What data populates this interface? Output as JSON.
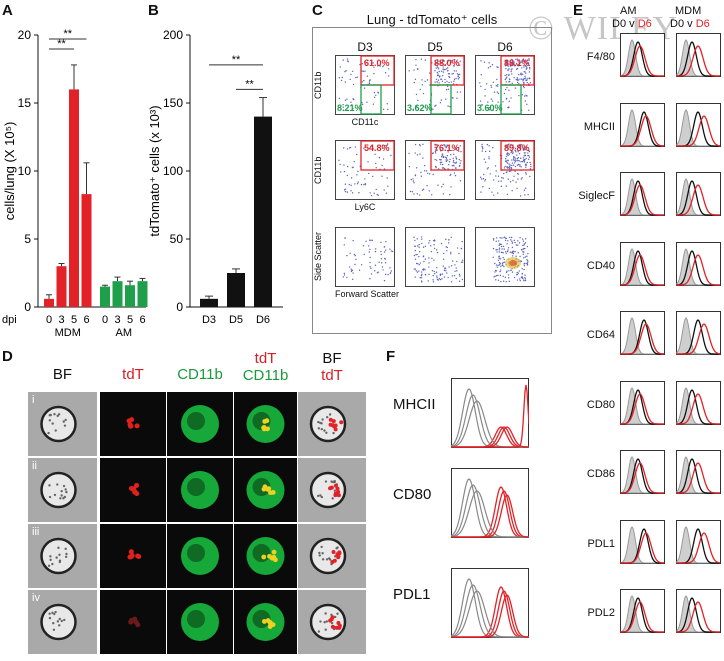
{
  "watermark": "© WILEY",
  "panels": {
    "A": "A",
    "B": "B",
    "C": "C",
    "D": "D",
    "E": "E",
    "F": "F"
  },
  "chart_data": [
    {
      "id": "A",
      "type": "bar",
      "ylabel": "cells/lung (X 10⁵)",
      "x_prefix": "dpi",
      "ylim": [
        0,
        20
      ],
      "yticks": [
        0,
        5,
        10,
        15,
        20
      ],
      "groups": [
        {
          "name": "MDM",
          "categories": [
            "0",
            "3",
            "5",
            "6"
          ],
          "values": [
            0.6,
            3.0,
            16.0,
            8.3
          ],
          "errors": [
            0.3,
            0.2,
            1.8,
            2.3
          ],
          "color": "#e32227"
        },
        {
          "name": "AM",
          "categories": [
            "0",
            "3",
            "5",
            "6"
          ],
          "values": [
            1.5,
            1.9,
            1.6,
            1.9
          ],
          "errors": [
            0.1,
            0.3,
            0.3,
            0.2
          ],
          "color": "#1ea04a"
        }
      ],
      "significance": [
        "**",
        "**"
      ]
    },
    {
      "id": "B",
      "type": "bar",
      "ylabel": "tdTomato⁺ cells (x 10³)",
      "ylim": [
        0,
        200
      ],
      "yticks": [
        0,
        50,
        100,
        150,
        200
      ],
      "categories": [
        "D3",
        "D5",
        "D6"
      ],
      "values": [
        6,
        25,
        140
      ],
      "errors": [
        2,
        3,
        14
      ],
      "color": "#111111",
      "significance": [
        "**",
        "**"
      ]
    }
  ],
  "panelC": {
    "title": "Lung - tdTomato⁺ cells",
    "columns": [
      "D3",
      "D5",
      "D6"
    ],
    "rows": [
      {
        "ylabel": "CD11b",
        "xlabel": "CD11c",
        "red": [
          "61.0%",
          "88.0%",
          "88.1%"
        ],
        "green": [
          "8.21%",
          "3.62%",
          "3.60%"
        ]
      },
      {
        "ylabel": "CD11b",
        "xlabel": "Ly6C",
        "red": [
          "54.8%",
          "76.1%",
          "89.8%"
        ]
      },
      {
        "ylabel": "Side Scatter",
        "xlabel": "Forward Scatter"
      }
    ]
  },
  "panelD": {
    "headers": [
      {
        "text": "BF",
        "color": "#111111"
      },
      {
        "text": "tdT",
        "color": "#d91e24"
      },
      {
        "text": "CD11b",
        "color": "#1a9a3c"
      },
      {
        "text": "tdT",
        "color": "#d91e24",
        "text2": "CD11b",
        "color2": "#1a9a3c"
      },
      {
        "text": "BF",
        "color": "#111111",
        "text2": "tdT",
        "color2": "#d91e24"
      }
    ],
    "rows": [
      "i",
      "ii",
      "iii",
      "iv"
    ]
  },
  "panelE": {
    "col_titles": [
      "AM",
      "MDM"
    ],
    "subtitle_a": "D0 v ",
    "subtitle_b": "D6",
    "markers": [
      "F4/80",
      "MHCII",
      "SiglecF",
      "CD40",
      "CD64",
      "CD80",
      "CD86",
      "PDL1",
      "PDL2"
    ]
  },
  "panelF": {
    "markers": [
      "MHCII",
      "CD80",
      "PDL1"
    ]
  },
  "colors": {
    "red": "#e32227",
    "green": "#1ea04a",
    "black": "#111111",
    "gray": "#888888"
  }
}
